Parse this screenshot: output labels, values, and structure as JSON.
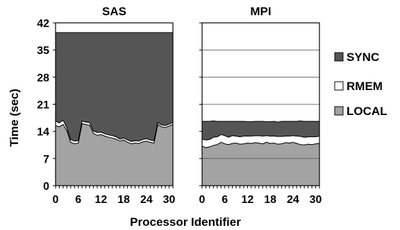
{
  "chart_data": [
    {
      "type": "area",
      "title": "SAS",
      "xlabel": "Processor Identifier",
      "ylabel": "Time (sec)",
      "ylim": [
        0,
        42
      ],
      "xlim": [
        0,
        31
      ],
      "yticks": [
        0,
        7,
        14,
        21,
        28,
        35,
        42
      ],
      "xticks": [
        0,
        6,
        12,
        18,
        24,
        30
      ],
      "grid": false,
      "stack_order": [
        "LOCAL",
        "RMEM",
        "SYNC"
      ],
      "x": [
        0,
        1,
        2,
        3,
        4,
        5,
        6,
        7,
        8,
        9,
        10,
        11,
        12,
        13,
        14,
        15,
        16,
        17,
        18,
        19,
        20,
        21,
        22,
        23,
        24,
        25,
        26,
        27,
        28,
        29,
        30,
        31
      ],
      "series": [
        {
          "name": "LOCAL",
          "values": [
            15.5,
            15.2,
            15.8,
            14.2,
            11.2,
            10.8,
            11.0,
            16.0,
            15.8,
            15.6,
            13.5,
            13.0,
            13.2,
            12.8,
            12.5,
            12.3,
            12.0,
            11.5,
            11.8,
            11.2,
            10.8,
            11.0,
            10.9,
            11.3,
            11.5,
            11.2,
            11.0,
            15.8,
            15.2,
            15.0,
            15.4,
            15.8
          ]
        },
        {
          "name": "RMEM",
          "values": [
            1.2,
            1.0,
            1.1,
            0.7,
            0.7,
            0.7,
            0.6,
            0.7,
            0.6,
            0.7,
            0.6,
            0.7,
            0.6,
            0.6,
            0.6,
            0.6,
            0.6,
            0.5,
            0.5,
            0.6,
            0.6,
            0.6,
            0.6,
            0.6,
            0.6,
            0.6,
            0.6,
            0.5,
            0.5,
            0.5,
            0.5,
            0.5
          ]
        },
        {
          "name": "SYNC",
          "values": [
            22.8,
            23.3,
            22.6,
            24.6,
            27.6,
            28.0,
            27.9,
            22.8,
            23.1,
            23.2,
            25.4,
            25.8,
            25.7,
            26.1,
            26.4,
            26.6,
            26.9,
            27.5,
            27.2,
            27.7,
            28.1,
            27.9,
            28.0,
            27.6,
            27.4,
            27.7,
            27.9,
            23.2,
            23.8,
            24.0,
            23.6,
            23.2
          ]
        }
      ],
      "total": [
        39.5,
        39.5,
        39.5,
        39.5,
        39.5,
        39.5,
        39.5,
        39.5,
        39.5,
        39.5,
        39.5,
        39.5,
        39.5,
        39.5,
        39.5,
        39.5,
        39.5,
        39.5,
        39.5,
        39.5,
        39.5,
        39.5,
        39.5,
        39.5,
        39.5,
        39.5,
        39.5,
        39.5,
        39.5,
        39.5,
        39.5,
        39.5
      ]
    },
    {
      "type": "area",
      "title": "MPI",
      "xlabel": "Processor Identifier",
      "ylabel": "",
      "ylim": [
        0,
        42
      ],
      "xlim": [
        0,
        31
      ],
      "yticks": [
        0,
        7,
        14,
        21,
        28,
        35,
        42
      ],
      "xticks": [
        0,
        6,
        12,
        18,
        24,
        30
      ],
      "grid": true,
      "stack_order": [
        "LOCAL",
        "RMEM",
        "SYNC"
      ],
      "x": [
        0,
        1,
        2,
        3,
        4,
        5,
        6,
        7,
        8,
        9,
        10,
        11,
        12,
        13,
        14,
        15,
        16,
        17,
        18,
        19,
        20,
        21,
        22,
        23,
        24,
        25,
        26,
        27,
        28,
        29,
        30,
        31
      ],
      "series": [
        {
          "name": "LOCAL",
          "values": [
            10.2,
            9.8,
            10.0,
            10.4,
            10.6,
            11.2,
            10.8,
            10.6,
            10.9,
            11.0,
            10.7,
            10.8,
            11.0,
            10.9,
            11.1,
            11.0,
            10.8,
            11.2,
            10.9,
            11.0,
            10.7,
            10.8,
            11.1,
            11.0,
            11.2,
            10.9,
            10.6,
            10.5,
            10.7,
            10.6,
            10.8,
            10.9
          ]
        },
        {
          "name": "RMEM",
          "values": [
            1.8,
            2.0,
            1.9,
            2.1,
            2.0,
            2.0,
            2.1,
            1.9,
            2.0,
            1.8,
            1.9,
            2.0,
            1.8,
            1.9,
            1.8,
            1.9,
            2.0,
            1.7,
            1.9,
            1.8,
            2.0,
            1.9,
            1.7,
            1.8,
            1.7,
            1.9,
            2.1,
            2.0,
            1.9,
            2.0,
            1.8,
            1.9
          ]
        },
        {
          "name": "SYNC",
          "values": [
            4.6,
            4.8,
            4.7,
            4.2,
            4.0,
            3.4,
            3.7,
            4.1,
            3.7,
            3.8,
            4.0,
            3.8,
            3.7,
            3.7,
            3.7,
            3.7,
            3.8,
            3.6,
            3.7,
            3.8,
            3.7,
            3.9,
            3.8,
            3.8,
            3.7,
            3.8,
            4.0,
            4.1,
            4.0,
            4.0,
            4.0,
            3.8
          ]
        }
      ]
    }
  ],
  "legend": {
    "placement": "right",
    "items": [
      {
        "label": "SYNC",
        "color": "#555555"
      },
      {
        "label": "RMEM",
        "color": "#ffffff"
      },
      {
        "label": "LOCAL",
        "color": "#a3a3a3"
      }
    ]
  },
  "colors": {
    "LOCAL": "#a3a3a3",
    "RMEM": "#ffffff",
    "SYNC": "#555555"
  }
}
